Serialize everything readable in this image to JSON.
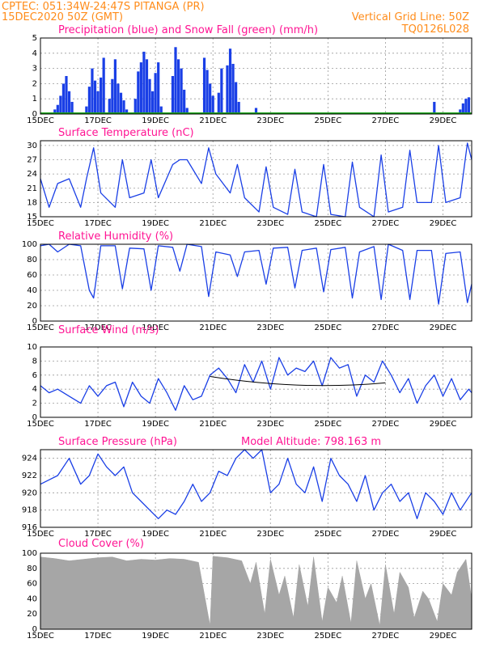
{
  "header": {
    "line1_left": "CPTEC:   051:34W-24:47S   PITANGA (PR)",
    "line2_left": "15DEC2020 50Z (GMT)",
    "line2_right": "Vertical Grid Line: 50Z",
    "line3_right": "TQ0126L028"
  },
  "colors": {
    "header": "#ff8c1a",
    "title": "#ff1493",
    "line": "#1a3fe6",
    "bar": "#1a3fe6",
    "snow": "#1aa61a",
    "cloud": "#a6a6a6",
    "grid": "#9a9a9a"
  },
  "x_axis": {
    "labels": [
      "15DEC",
      "17DEC",
      "19DEC",
      "21DEC",
      "23DEC",
      "25DEC",
      "27DEC",
      "29DEC"
    ],
    "start_day": 15,
    "end_day": 30
  },
  "chart_data": [
    {
      "type": "bar",
      "title": "Precipitation (blue) and Snow Fall (green) (mm/h)",
      "ylim": [
        0,
        5
      ],
      "yticks": [
        "0",
        "1",
        "2",
        "3",
        "4",
        "5"
      ],
      "x_days": [
        15.5,
        15.6,
        15.7,
        15.8,
        15.9,
        16.0,
        16.1,
        16.6,
        16.7,
        16.8,
        16.9,
        17.0,
        17.1,
        17.2,
        17.4,
        17.5,
        17.6,
        17.7,
        17.8,
        17.9,
        18.0,
        18.3,
        18.4,
        18.5,
        18.6,
        18.7,
        18.8,
        18.9,
        19.0,
        19.1,
        19.2,
        19.6,
        19.7,
        19.8,
        19.9,
        20.0,
        20.1,
        20.5,
        20.7,
        20.8,
        20.9,
        21.0,
        21.2,
        21.3,
        21.5,
        21.6,
        21.7,
        21.8,
        21.9,
        22.5,
        28.7,
        29.6,
        29.7,
        29.8,
        29.9
      ],
      "values": [
        0.3,
        0.6,
        1.2,
        2.0,
        2.5,
        1.5,
        0.8,
        0.5,
        1.8,
        3.0,
        2.2,
        1.5,
        2.4,
        3.7,
        1.0,
        2.3,
        3.6,
        2.0,
        1.4,
        0.9,
        0.3,
        1.0,
        2.8,
        3.4,
        4.1,
        3.6,
        2.3,
        1.5,
        2.7,
        3.4,
        0.5,
        2.5,
        4.4,
        3.6,
        3.0,
        1.6,
        0.4,
        0.1,
        3.7,
        2.9,
        2.0,
        1.2,
        1.4,
        3.0,
        3.2,
        4.3,
        3.3,
        2.1,
        0.8,
        0.4,
        0.8,
        0.3,
        0.7,
        1.0,
        1.1
      ],
      "snow": "0"
    },
    {
      "type": "line",
      "title": "Surface Temperature (nC)",
      "ylim": [
        15,
        31
      ],
      "yticks": [
        "15",
        "18",
        "21",
        "24",
        "27",
        "30"
      ],
      "x_days": [
        15.0,
        15.3,
        15.6,
        16.0,
        16.4,
        16.6,
        16.85,
        17.1,
        17.6,
        17.85,
        18.1,
        18.6,
        18.85,
        19.1,
        19.6,
        19.85,
        20.1,
        20.6,
        20.85,
        21.1,
        21.6,
        21.85,
        22.1,
        22.6,
        22.85,
        23.1,
        23.6,
        23.85,
        24.1,
        24.6,
        24.85,
        25.1,
        25.6,
        25.85,
        26.1,
        26.6,
        26.85,
        27.1,
        27.6,
        27.85,
        28.1,
        28.6,
        28.85,
        29.1,
        29.6,
        29.85,
        30.0
      ],
      "values": [
        23,
        17,
        22,
        23,
        17,
        23,
        29.5,
        20,
        17,
        27,
        19,
        20,
        27,
        19,
        26,
        27,
        27,
        22,
        29.5,
        24,
        20,
        26,
        19,
        16,
        25.5,
        17,
        15.5,
        25,
        16,
        15,
        26,
        15.5,
        15,
        26.5,
        17,
        15,
        28,
        16,
        17,
        29,
        18,
        18,
        30,
        18,
        19,
        30.5,
        27
      ]
    },
    {
      "type": "line",
      "title": "Relative Humidity (%)",
      "ylim": [
        0,
        100
      ],
      "yticks": [
        "0",
        "20",
        "40",
        "60",
        "80",
        "100"
      ],
      "x_days": [
        15.0,
        15.3,
        15.6,
        16.0,
        16.4,
        16.7,
        16.85,
        17.1,
        17.6,
        17.85,
        18.1,
        18.6,
        18.85,
        19.1,
        19.6,
        19.85,
        20.1,
        20.6,
        20.85,
        21.1,
        21.6,
        21.85,
        22.1,
        22.6,
        22.85,
        23.1,
        23.6,
        23.85,
        24.1,
        24.6,
        24.85,
        25.1,
        25.6,
        25.85,
        26.1,
        26.6,
        26.85,
        27.1,
        27.6,
        27.85,
        28.1,
        28.6,
        28.85,
        29.1,
        29.6,
        29.85,
        30.0
      ],
      "values": [
        98,
        100,
        90,
        100,
        98,
        40,
        30,
        98,
        98,
        42,
        95,
        94,
        40,
        98,
        96,
        65,
        100,
        97,
        32,
        90,
        86,
        58,
        90,
        92,
        48,
        95,
        96,
        43,
        92,
        95,
        38,
        93,
        96,
        30,
        90,
        97,
        28,
        100,
        92,
        28,
        92,
        92,
        22,
        88,
        90,
        24,
        48
      ]
    },
    {
      "type": "line",
      "title": "Surface Wind (m/s)",
      "ylim": [
        0,
        10
      ],
      "yticks": [
        "0",
        "2",
        "4",
        "6",
        "8",
        "10"
      ],
      "x_days": [
        15.0,
        15.3,
        15.6,
        16.0,
        16.4,
        16.7,
        17.0,
        17.3,
        17.6,
        17.9,
        18.2,
        18.5,
        18.8,
        19.1,
        19.4,
        19.7,
        20.0,
        20.3,
        20.6,
        20.9,
        21.2,
        21.5,
        21.8,
        22.1,
        22.4,
        22.7,
        23.0,
        23.3,
        23.6,
        23.9,
        24.2,
        24.5,
        24.8,
        25.1,
        25.4,
        25.7,
        26.0,
        26.3,
        26.6,
        26.9,
        27.2,
        27.5,
        27.8,
        28.1,
        28.4,
        28.7,
        29.0,
        29.3,
        29.6,
        29.9,
        30.0
      ],
      "values": [
        4.5,
        3.5,
        4.0,
        3.0,
        2.0,
        4.5,
        3.0,
        4.5,
        5.0,
        1.5,
        5.0,
        3.0,
        2.0,
        5.5,
        3.5,
        1.0,
        4.5,
        2.5,
        3.0,
        6.0,
        7.0,
        5.5,
        3.5,
        7.5,
        5.0,
        8.0,
        4.0,
        8.5,
        6.0,
        7.0,
        6.5,
        8.0,
        4.5,
        8.5,
        7.0,
        7.5,
        3.0,
        6.0,
        5.0,
        8.0,
        6.0,
        3.5,
        5.5,
        2.0,
        4.5,
        6.0,
        3.0,
        5.5,
        2.5,
        4.0,
        3.5
      ]
    },
    {
      "type": "line",
      "title": "Surface Pressure (hPa)",
      "annotation": "Model Altitude: 798.163 m",
      "ylim": [
        916,
        925
      ],
      "yticks": [
        "916",
        "918",
        "920",
        "922",
        "924"
      ],
      "x_days": [
        15.0,
        15.3,
        15.6,
        16.0,
        16.4,
        16.7,
        17.0,
        17.3,
        17.6,
        17.9,
        18.2,
        18.5,
        18.8,
        19.1,
        19.4,
        19.7,
        20.0,
        20.3,
        20.6,
        20.9,
        21.2,
        21.5,
        21.8,
        22.1,
        22.4,
        22.7,
        23.0,
        23.3,
        23.6,
        23.9,
        24.2,
        24.5,
        24.8,
        25.1,
        25.4,
        25.7,
        26.0,
        26.3,
        26.6,
        26.9,
        27.2,
        27.5,
        27.8,
        28.1,
        28.4,
        28.7,
        29.0,
        29.3,
        29.6,
        29.9,
        30.0
      ],
      "values": [
        921,
        921.5,
        922,
        924,
        921,
        922,
        924.5,
        923,
        922,
        923,
        920,
        919,
        918,
        917,
        918,
        917.5,
        919,
        921,
        919,
        920,
        922.5,
        922,
        924,
        925,
        924,
        925,
        920,
        921,
        924,
        921,
        920,
        923,
        919,
        924,
        922,
        921,
        919,
        922,
        918,
        920,
        921,
        919,
        920,
        917,
        920,
        919,
        917.5,
        920,
        918,
        919.5,
        920
      ]
    },
    {
      "type": "area",
      "title": "Cloud Cover (%)",
      "ylim": [
        0,
        100
      ],
      "yticks": [
        "0",
        "20",
        "40",
        "60",
        "80",
        "100"
      ],
      "x_days": [
        15.0,
        15.5,
        16.0,
        16.5,
        17.0,
        17.5,
        18.0,
        18.5,
        19.0,
        19.5,
        20.0,
        20.5,
        20.9,
        21.0,
        21.5,
        22.0,
        22.3,
        22.5,
        22.8,
        23.0,
        23.3,
        23.5,
        23.8,
        24.0,
        24.3,
        24.5,
        24.8,
        25.0,
        25.3,
        25.5,
        25.8,
        26.0,
        26.3,
        26.5,
        26.8,
        27.0,
        27.3,
        27.5,
        27.8,
        28.0,
        28.3,
        28.5,
        28.8,
        29.0,
        29.3,
        29.5,
        29.8,
        30.0
      ],
      "values": [
        95,
        93,
        90,
        92,
        94,
        95,
        90,
        92,
        91,
        93,
        92,
        88,
        5,
        96,
        94,
        90,
        60,
        88,
        20,
        92,
        45,
        70,
        15,
        85,
        30,
        95,
        10,
        55,
        35,
        70,
        8,
        90,
        40,
        60,
        5,
        85,
        20,
        75,
        55,
        15,
        50,
        40,
        10,
        60,
        45,
        75,
        92,
        40
      ]
    }
  ]
}
